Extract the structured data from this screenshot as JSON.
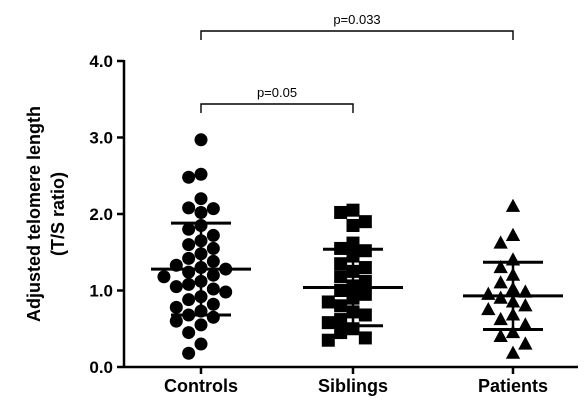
{
  "chart_data": {
    "type": "scatter",
    "ylabel_line1": "Adjusted telomere length",
    "ylabel_line2": "(T/S ratio)",
    "ylim": [
      0,
      4
    ],
    "yticks": [
      "0.0",
      "1.0",
      "2.0",
      "3.0",
      "4.0"
    ],
    "categories": [
      "Controls",
      "Siblings",
      "Patients"
    ],
    "series": [
      {
        "category": "Controls",
        "marker": "circle",
        "mean": 1.28,
        "sd_upper": 1.88,
        "sd_lower": 0.68,
        "values": [
          2.97,
          2.52,
          2.48,
          2.2,
          2.08,
          2.07,
          2.02,
          1.85,
          1.8,
          1.72,
          1.65,
          1.6,
          1.55,
          1.48,
          1.42,
          1.38,
          1.33,
          1.3,
          1.28,
          1.24,
          1.2,
          1.18,
          1.12,
          1.08,
          1.05,
          1.02,
          0.98,
          0.92,
          0.88,
          0.82,
          0.78,
          0.73,
          0.68,
          0.65,
          0.6,
          0.55,
          0.45,
          0.3,
          0.18
        ]
      },
      {
        "category": "Siblings",
        "marker": "square",
        "mean": 1.04,
        "sd_upper": 1.54,
        "sd_lower": 0.54,
        "values": [
          2.05,
          2.02,
          1.9,
          1.85,
          1.62,
          1.55,
          1.52,
          1.45,
          1.35,
          1.3,
          1.25,
          1.18,
          1.12,
          1.06,
          1.0,
          0.95,
          0.9,
          0.85,
          0.8,
          0.72,
          0.68,
          0.62,
          0.58,
          0.5,
          0.45,
          0.38,
          0.35
        ]
      },
      {
        "category": "Patients",
        "marker": "triangle",
        "mean": 0.93,
        "sd_upper": 1.37,
        "sd_lower": 0.49,
        "values": [
          2.1,
          1.72,
          1.62,
          1.4,
          1.3,
          1.2,
          1.1,
          1.02,
          0.98,
          0.95,
          0.9,
          0.85,
          0.8,
          0.75,
          0.68,
          0.62,
          0.55,
          0.45,
          0.4,
          0.3,
          0.18
        ]
      }
    ],
    "annotations": [
      {
        "label": "p=0.05",
        "from": "Controls",
        "to": "Siblings"
      },
      {
        "label": "p=0.033",
        "from": "Controls",
        "to": "Patients"
      }
    ]
  }
}
